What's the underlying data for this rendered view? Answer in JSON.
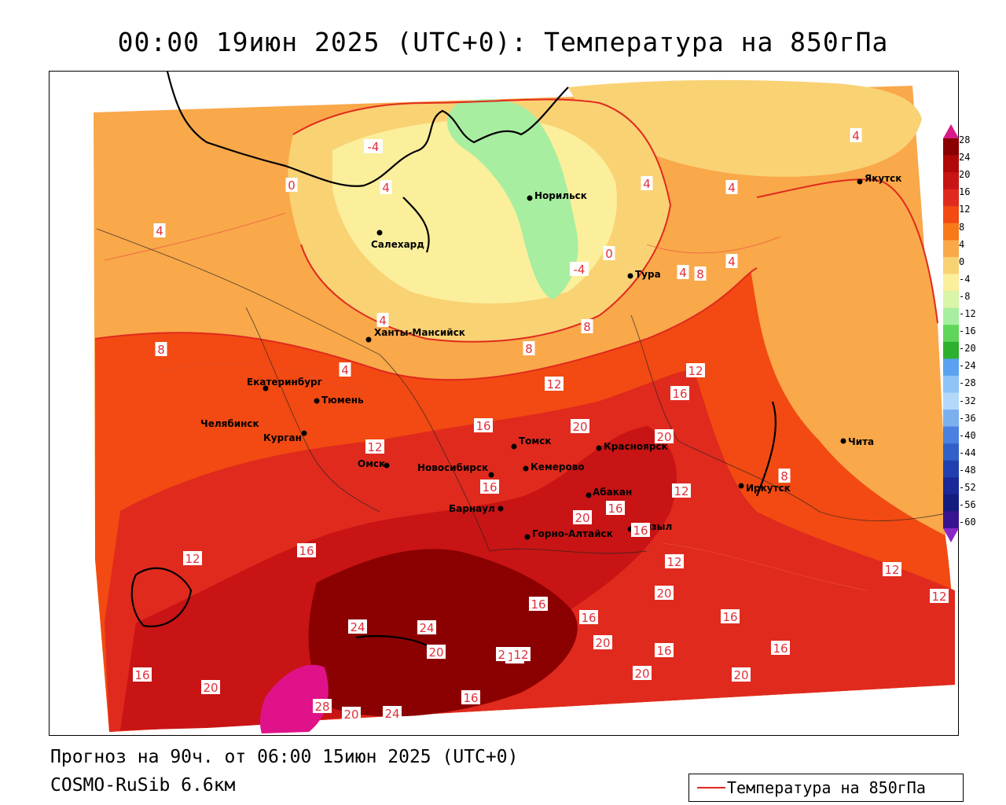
{
  "title": "00:00 19июн 2025 (UTC+0): Температура на 850гПа",
  "footer": {
    "forecast": "Прогноз на 90ч. от 06:00 15июн 2025 (UTC+0)",
    "model": "COSMO-RuSib 6.6км"
  },
  "legend": {
    "label": "Температура на 850гПа",
    "line_color": "#e02a1e"
  },
  "colorbar": {
    "ticks": [
      "28",
      "24",
      "20",
      "16",
      "12",
      "8",
      "4",
      "0",
      "-4",
      "-8",
      "-12",
      "-16",
      "-20",
      "-24",
      "-28",
      "-32",
      "-36",
      "-40",
      "-44",
      "-48",
      "-52",
      "-56",
      "-60"
    ],
    "colors": [
      "#8b0000",
      "#b00808",
      "#c81414",
      "#e02a1e",
      "#f24a12",
      "#f97818",
      "#f9a84a",
      "#f9d274",
      "#fbef9c",
      "#d8f5a8",
      "#a8eea0",
      "#5fd65a",
      "#2db02d",
      "#5aa2f0",
      "#8fc4f8",
      "#b4d8fa",
      "#7ab0f0",
      "#4a80e0",
      "#3060c8",
      "#2040b0",
      "#1a2898",
      "#141c80",
      "#3a1490"
    ],
    "top_arrow_color": "#d81b8a",
    "bottom_arrow_color": "#8a28c8"
  },
  "cities": [
    {
      "name": "Якутск"
    },
    {
      "name": "Норильск"
    },
    {
      "name": "Салехард"
    },
    {
      "name": "Тура"
    },
    {
      "name": "Ханты-Мансийск"
    },
    {
      "name": "Екатеринбург"
    },
    {
      "name": "Тюмень"
    },
    {
      "name": "Челябинск"
    },
    {
      "name": "Курган"
    },
    {
      "name": "Омск"
    },
    {
      "name": "Новосибирск"
    },
    {
      "name": "Томск"
    },
    {
      "name": "Кемерово"
    },
    {
      "name": "Красноярск"
    },
    {
      "name": "Абакан"
    },
    {
      "name": "Барнаул"
    },
    {
      "name": "Горно-Алтайск"
    },
    {
      "name": "Кызыл"
    },
    {
      "name": "Иркутск"
    },
    {
      "name": "Чита"
    }
  ],
  "isotherm_labels": [
    "4",
    "-4",
    "4",
    "0",
    "4",
    "4",
    "4",
    "8",
    "-4",
    "0",
    "4",
    "8",
    "4",
    "8",
    "4",
    "8",
    "4",
    "12",
    "8",
    "12",
    "16",
    "16",
    "20",
    "20",
    "12",
    "12",
    "16",
    "16",
    "20",
    "12",
    "16",
    "12",
    "12",
    "16",
    "20",
    "16",
    "12",
    "16",
    "16",
    "16",
    "20",
    "24",
    "20",
    "24",
    "20",
    "16",
    "28",
    "20",
    "24",
    "16",
    "20",
    "20",
    "16",
    "12",
    "20",
    "16"
  ]
}
